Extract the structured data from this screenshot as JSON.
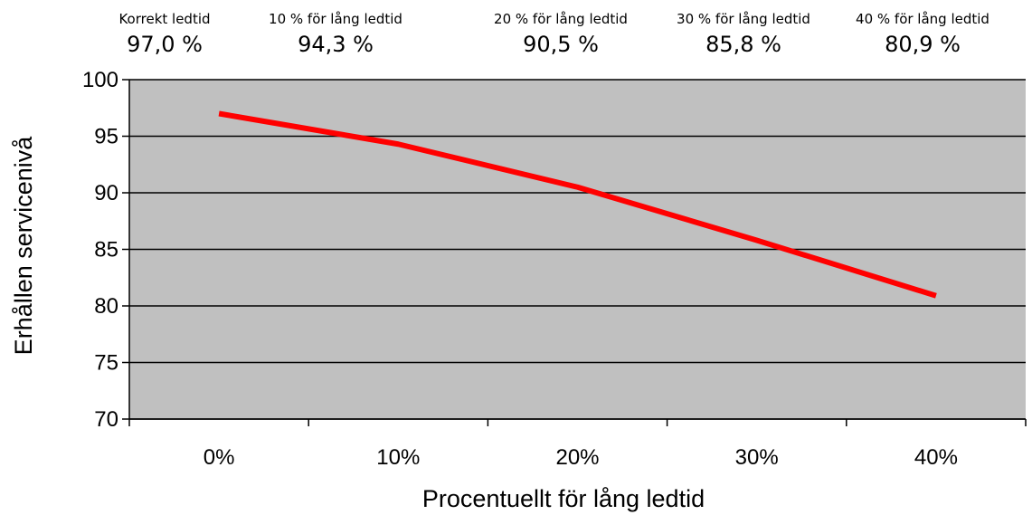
{
  "chart_data": {
    "type": "line",
    "title": "",
    "xlabel": "Procentuellt för lång ledtid",
    "ylabel": "Erhållen servicenivå",
    "categories": [
      "0%",
      "10%",
      "20%",
      "30%",
      "40%"
    ],
    "series": [
      {
        "values": [
          97.0,
          94.3,
          90.5,
          85.8,
          80.9
        ],
        "color": "#ff0000"
      }
    ],
    "ylim": [
      70,
      100
    ],
    "yticks": [
      "100",
      "95",
      "90",
      "85",
      "80",
      "75",
      "70"
    ],
    "grid": true,
    "plot_background": "#c0c0c0",
    "annotations": [
      {
        "label": "Korrekt ledtid",
        "value": "97,0 %"
      },
      {
        "label": "10 % för lång ledtid",
        "value": "94,3 %"
      },
      {
        "label": "20 % för lång ledtid",
        "value": "90,5 %"
      },
      {
        "label": "30 % för lång ledtid",
        "value": "85,8 %"
      },
      {
        "label": "40 % för lång ledtid",
        "value": "80,9 %"
      }
    ]
  }
}
